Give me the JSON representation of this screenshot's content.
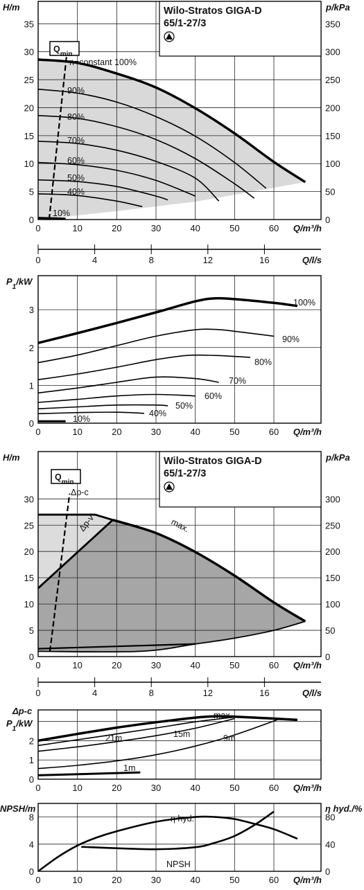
{
  "chart_data": [
    {
      "id": "head-speed",
      "type": "line",
      "title_lines": [
        "Wilo-Stratos GIGA-D",
        "65/1-27/3"
      ],
      "ylabel": "H/m",
      "ylabel_right": "p/kPa",
      "xlabel": "Q/m³/h",
      "xlim": [
        0,
        72
      ],
      "ylim": [
        0,
        39
      ],
      "xticks": [
        "0",
        "10",
        "20",
        "30",
        "40",
        "50",
        "60"
      ],
      "yticks": [
        "0",
        "5",
        "10",
        "15",
        "20",
        "25",
        "30",
        "35"
      ],
      "yticks_right": [
        "0",
        "50",
        "100",
        "150",
        "200",
        "250",
        "300",
        "350"
      ],
      "grid": true,
      "shaded_region": "operating range (0 % – 100 %)",
      "qmin_label": "Qmin",
      "qmin_line": [
        [
          2.8,
          0
        ],
        [
          7.5,
          31
        ]
      ],
      "series": [
        {
          "name": "n=constant 100%",
          "label": "n=constant 100%",
          "width": 3.5,
          "x": [
            0,
            10,
            20,
            30,
            40,
            50,
            60,
            68
          ],
          "y": [
            28.6,
            28.0,
            26.1,
            23.6,
            19.9,
            15.4,
            10.3,
            6.7
          ]
        },
        {
          "label": "90%",
          "x": [
            0,
            10,
            20,
            30,
            40,
            50,
            58
          ],
          "y": [
            23.3,
            22.6,
            21.0,
            18.4,
            14.9,
            10.2,
            5.6
          ]
        },
        {
          "label": "80%",
          "x": [
            0,
            10,
            20,
            30,
            40,
            50,
            55
          ],
          "y": [
            18.6,
            18.1,
            16.6,
            14.3,
            10.9,
            6.4,
            3.8
          ]
        },
        {
          "label": "70%",
          "x": [
            0,
            10,
            20,
            30,
            40,
            46
          ],
          "y": [
            14.0,
            13.6,
            12.4,
            10.4,
            7.4,
            3.3
          ]
        },
        {
          "label": "60%",
          "x": [
            0,
            10,
            20,
            30,
            40
          ],
          "y": [
            10.2,
            9.8,
            8.8,
            7.0,
            4.2
          ]
        },
        {
          "label": "50%",
          "x": [
            0,
            10,
            20,
            30,
            33
          ],
          "y": [
            7.1,
            6.8,
            5.9,
            4.2,
            3.5
          ]
        },
        {
          "label": "40%",
          "x": [
            0,
            10,
            20,
            26.5
          ],
          "y": [
            4.6,
            4.3,
            3.3,
            2.3
          ]
        },
        {
          "label": "10%",
          "width": 3,
          "x": [
            0,
            7
          ],
          "y": [
            0.3,
            0.15
          ]
        }
      ]
    },
    {
      "id": "flow-ls-axis-1",
      "type": "axis",
      "xlabel": "Q/l/s",
      "xlim": [
        0,
        20
      ],
      "xticks": [
        "0",
        "4",
        "8",
        "12",
        "16"
      ]
    },
    {
      "id": "power-speed",
      "type": "line",
      "ylabel": "P1/kW",
      "xlabel": "Q/m³/h",
      "xlim": [
        0,
        72
      ],
      "ylim": [
        0,
        3.9
      ],
      "xticks": [
        "0",
        "10",
        "20",
        "30",
        "40",
        "50",
        "60"
      ],
      "yticks": [
        "0",
        "1",
        "2",
        "3"
      ],
      "grid": true,
      "series": [
        {
          "label": "100%",
          "width": 3.5,
          "x": [
            0,
            10,
            20,
            30,
            40,
            45,
            50,
            60,
            66
          ],
          "y": [
            2.12,
            2.38,
            2.65,
            2.93,
            3.22,
            3.3,
            3.28,
            3.18,
            3.1
          ]
        },
        {
          "label": "90%",
          "x": [
            0,
            10,
            20,
            30,
            40,
            45,
            50,
            60
          ],
          "y": [
            1.6,
            1.8,
            2.05,
            2.3,
            2.47,
            2.48,
            2.43,
            2.3
          ]
        },
        {
          "label": "80%",
          "x": [
            0,
            10,
            20,
            30,
            38,
            45,
            54
          ],
          "y": [
            1.15,
            1.3,
            1.48,
            1.68,
            1.79,
            1.79,
            1.74
          ]
        },
        {
          "label": "70%",
          "x": [
            0,
            10,
            20,
            30,
            40,
            46
          ],
          "y": [
            0.8,
            0.93,
            1.08,
            1.22,
            1.18,
            1.08
          ]
        },
        {
          "label": "60%",
          "x": [
            0,
            10,
            20,
            30,
            40
          ],
          "y": [
            0.55,
            0.63,
            0.72,
            0.76,
            0.72
          ]
        },
        {
          "label": "50%",
          "x": [
            0,
            10,
            20,
            30,
            33
          ],
          "y": [
            0.38,
            0.43,
            0.48,
            0.48,
            0.46
          ]
        },
        {
          "label": "40%",
          "x": [
            0,
            10,
            20,
            27
          ],
          "y": [
            0.25,
            0.28,
            0.29,
            0.26
          ]
        },
        {
          "label": "10%",
          "width": 3,
          "x": [
            0,
            7
          ],
          "y": [
            0.05,
            0.05
          ]
        }
      ]
    },
    {
      "id": "head-control-modes",
      "type": "area",
      "title_lines": [
        "Wilo-Stratos GIGA-D",
        "65/1-27/3"
      ],
      "ylabel": "H/m",
      "ylabel_right": "p/kPa",
      "xlabel": "Q/m³/h",
      "xlim": [
        0,
        72
      ],
      "ylim": [
        0,
        39
      ],
      "xticks": [
        "0",
        "10",
        "20",
        "30",
        "40",
        "50",
        "60"
      ],
      "yticks": [
        "0",
        "5",
        "10",
        "15",
        "20",
        "25",
        "30"
      ],
      "yticks_right": [
        "0",
        "50",
        "100",
        "150",
        "200",
        "250",
        "300"
      ],
      "grid": true,
      "qmin_label": "Qmin",
      "qmin_line": [
        [
          3,
          1
        ],
        [
          8,
          31
        ]
      ],
      "labels": {
        "dpc": "Δp-c",
        "dpv": "Δp-v",
        "max": "max."
      },
      "dpc_line": {
        "x": [
          0,
          14.5
        ],
        "y": [
          27,
          27
        ]
      },
      "dpv_line": {
        "x": [
          0,
          19
        ],
        "y": [
          13,
          26
        ]
      },
      "max_curve": {
        "x": [
          19,
          30,
          40,
          50,
          60,
          68
        ],
        "y": [
          26,
          23.5,
          19.9,
          15.4,
          10.3,
          6.7
        ]
      },
      "min_curve": {
        "x": [
          0,
          26,
          40,
          50,
          60,
          68
        ],
        "y": [
          1,
          1,
          2.4,
          3.5,
          5,
          6.7
        ]
      },
      "lower_line": {
        "x": [
          0,
          40
        ],
        "y": [
          1.5,
          2.4
        ]
      },
      "region_dark": "Δp-v range",
      "region_light": "Δp-c range"
    },
    {
      "id": "flow-ls-axis-2",
      "type": "axis",
      "xlabel": "Q/l/s",
      "xlim": [
        0,
        20
      ],
      "xticks": [
        "0",
        "4",
        "8",
        "12",
        "16"
      ]
    },
    {
      "id": "power-control-modes",
      "type": "line",
      "ylabel_top": "Δp-c",
      "ylabel": "P1/kW",
      "xlabel": "Q/m³/h",
      "xlim": [
        0,
        72
      ],
      "ylim": [
        0,
        3.6
      ],
      "xticks": [
        "0",
        "10",
        "20",
        "30",
        "40",
        "50",
        "60"
      ],
      "yticks": [
        "0",
        "1",
        "2"
      ],
      "grid": true,
      "series": [
        {
          "label": "max.",
          "width": 3.5,
          "x": [
            0,
            10,
            20,
            30,
            40,
            45,
            50,
            60,
            66
          ],
          "y": [
            2.0,
            2.35,
            2.68,
            2.96,
            3.2,
            3.27,
            3.25,
            3.15,
            3.08
          ]
        },
        {
          "label": "21m",
          "x": [
            0,
            10,
            20,
            30,
            40,
            51
          ],
          "y": [
            1.75,
            2.05,
            2.35,
            2.66,
            2.98,
            3.25
          ]
        },
        {
          "label": "15m",
          "x": [
            0,
            10,
            20,
            30,
            40,
            50
          ],
          "y": [
            1.45,
            1.68,
            1.95,
            2.26,
            2.65,
            3.15
          ]
        },
        {
          "label": "9m",
          "x": [
            0,
            10,
            20,
            30,
            40,
            50,
            61
          ],
          "y": [
            0.55,
            0.72,
            0.95,
            1.27,
            1.72,
            2.3,
            3.1
          ]
        },
        {
          "label": "1m",
          "width": 3,
          "x": [
            0,
            26
          ],
          "y": [
            0.2,
            0.35
          ]
        }
      ]
    },
    {
      "id": "npsh-efficiency",
      "type": "line",
      "ylabel": "NPSH/m",
      "ylabel_right": "η hyd./%",
      "xlabel": "Q/m³/h",
      "xlim": [
        0,
        72
      ],
      "ylim": [
        0,
        10
      ],
      "xticks": [
        "0",
        "10",
        "20",
        "30",
        "40",
        "50",
        "60"
      ],
      "yticks": [
        "0",
        "4",
        "8"
      ],
      "yticks_right": [
        "0",
        "40",
        "80"
      ],
      "grid": true,
      "series": [
        {
          "label": "η hyd.",
          "axis": "right",
          "x": [
            0,
            5,
            10,
            15,
            20,
            30,
            40,
            45,
            50,
            55,
            60,
            66
          ],
          "y": [
            0,
            21,
            38,
            50,
            59,
            73,
            80,
            80,
            77,
            70,
            62,
            48
          ]
        },
        {
          "label": "NPSH",
          "axis": "left",
          "x": [
            11,
            20,
            30,
            40,
            45,
            50,
            55,
            60
          ],
          "y": [
            3.6,
            3.4,
            3.25,
            3.55,
            4.2,
            5.2,
            6.8,
            8.8
          ]
        }
      ]
    }
  ]
}
